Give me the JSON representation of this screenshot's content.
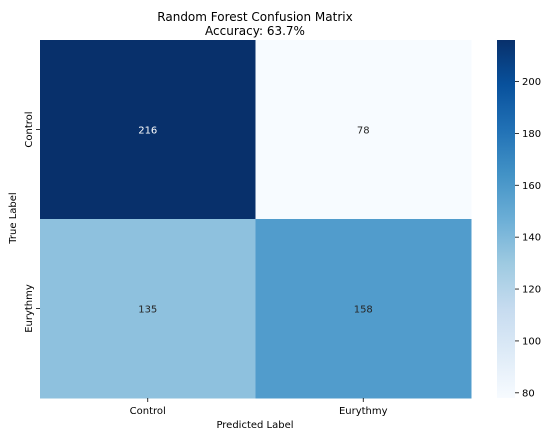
{
  "chart_data": {
    "type": "heatmap",
    "title": "Random Forest Confusion Matrix",
    "subtitle": "Accuracy: 63.7%",
    "xlabel": "Predicted Label",
    "ylabel": "True Label",
    "x_categories": [
      "Control",
      "Eurythmy"
    ],
    "y_categories": [
      "Control",
      "Eurythmy"
    ],
    "values": [
      [
        216,
        78
      ],
      [
        135,
        158
      ]
    ],
    "colormap": "Blues",
    "colorbar": {
      "min": 78,
      "max": 216,
      "ticks": [
        "80",
        "100",
        "120",
        "140",
        "160",
        "180",
        "200"
      ]
    },
    "grid": false,
    "legend": "none"
  }
}
